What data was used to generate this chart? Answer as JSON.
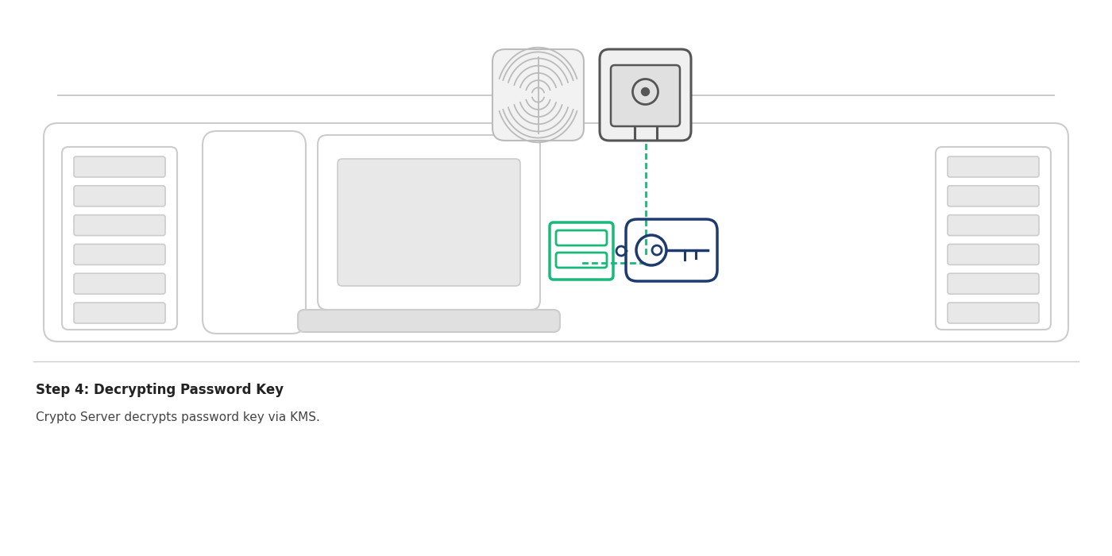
{
  "bg_color": "#ffffff",
  "light_gray": "#cccccc",
  "slot_fill": "#e8e8e8",
  "dark_gray": "#555555",
  "icon_bg": "#f0f0f0",
  "fp_bg": "#f2f2f2",
  "green": "#1ab87a",
  "blue": "#1e3a6e",
  "dot_green": "#1ab87a",
  "title": "Step 4: Decrypting Password Key",
  "subtitle": "Crypto Server decrypts password key via KMS.",
  "title_fontsize": 12,
  "subtitle_fontsize": 11,
  "divider_color": "#cccccc"
}
